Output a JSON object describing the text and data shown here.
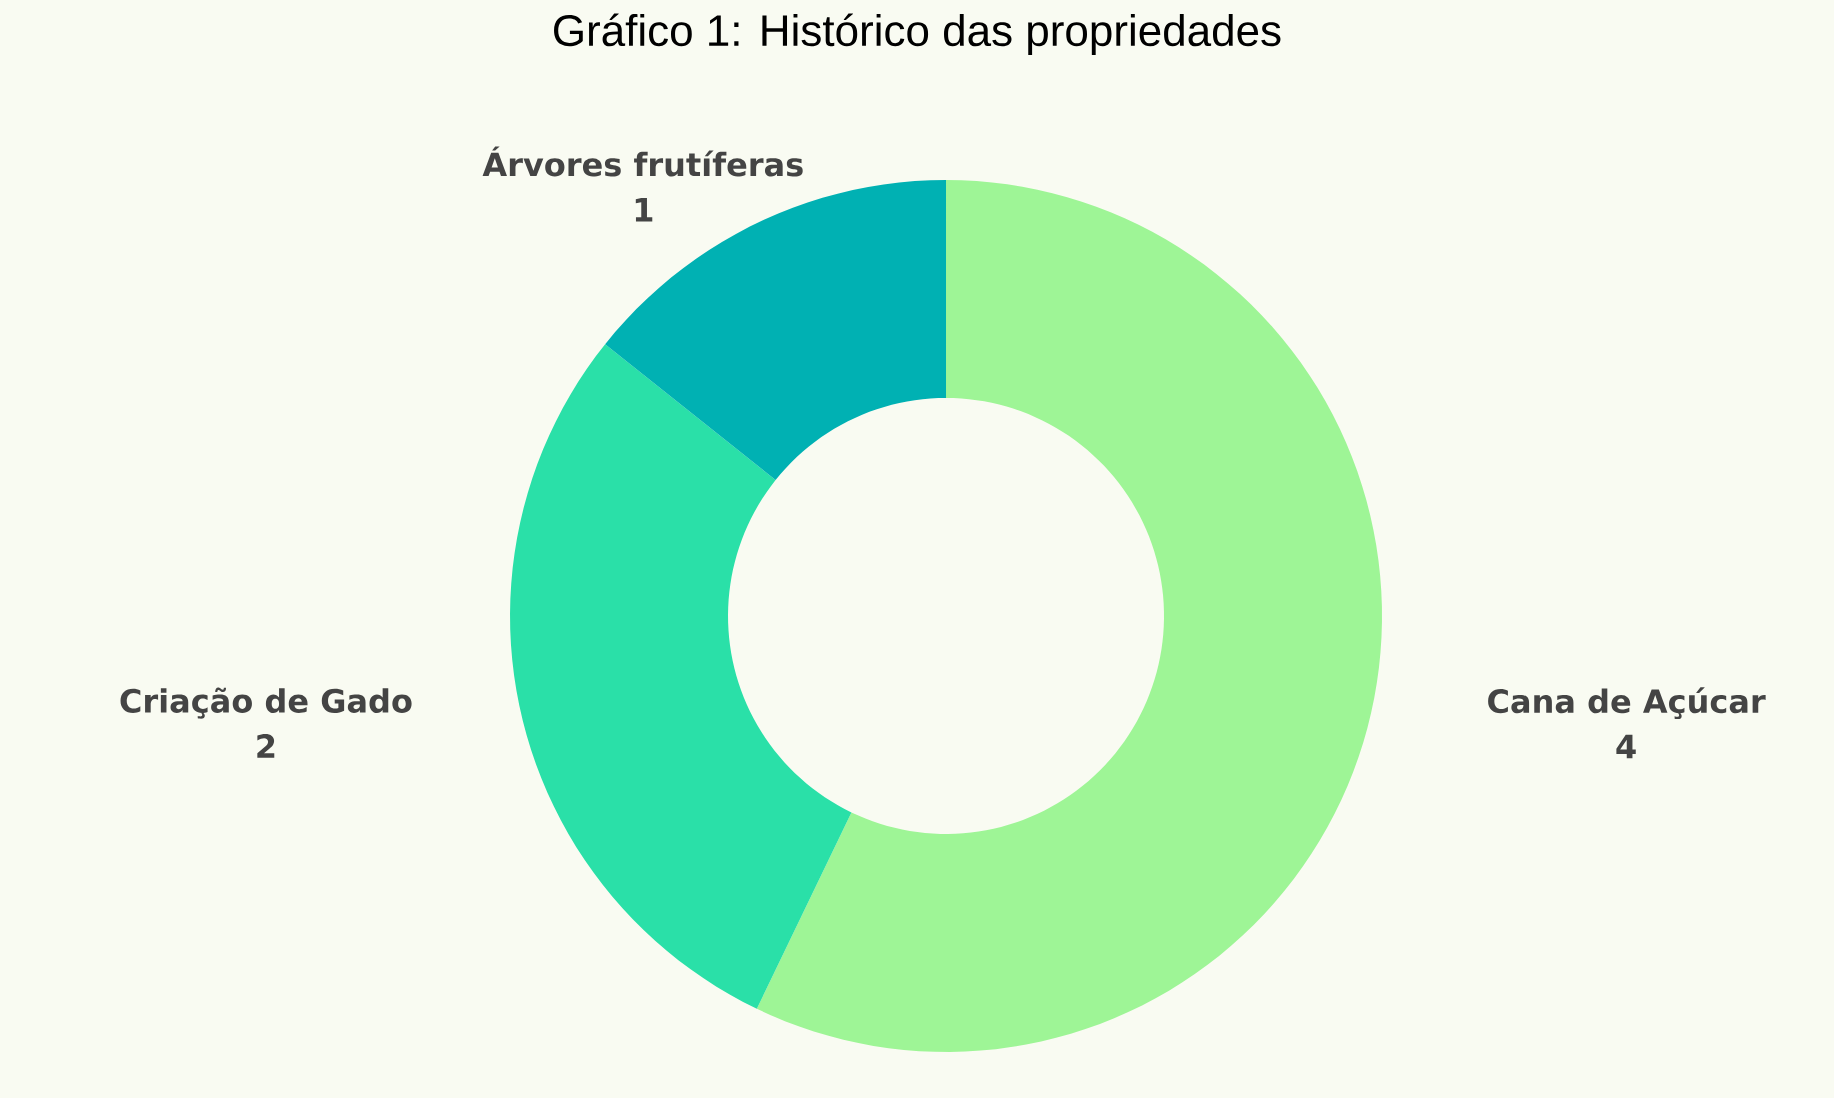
{
  "chart_data": {
    "type": "donut",
    "title": "Gráfico 1: Histórico das propriedades",
    "categories": [
      "Cana de Açúcar",
      "Criação de Gado",
      "Árvores frutíferas"
    ],
    "values": [
      4,
      2,
      1
    ],
    "colors": [
      "#9ef596",
      "#2ae0a8",
      "#00b1b3"
    ],
    "data_labels": true
  }
}
